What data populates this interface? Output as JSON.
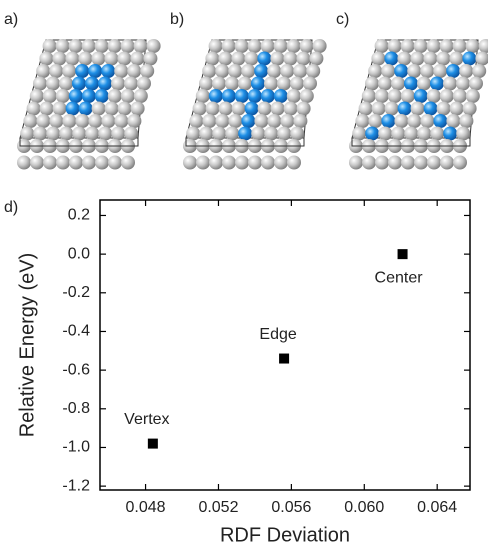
{
  "panel_labels": [
    "a)",
    "b)",
    "c)",
    "d)"
  ],
  "chart_data": {
    "type": "scatter",
    "x_label": "RDF Deviation",
    "y_label": "Relative Energy (eV)",
    "x": [
      0.0484,
      0.0556,
      0.0621
    ],
    "values": [
      -0.98,
      -0.54,
      0.0
    ],
    "point_labels": [
      "Vertex",
      "Edge",
      "Center"
    ],
    "color": "#000000",
    "xlim": [
      0.0455,
      0.0658
    ],
    "ylim": [
      -1.22,
      0.28
    ],
    "xticks": [
      0.048,
      0.052,
      0.056,
      {
        "value": 0.06,
        "label": "0.060"
      },
      0.064
    ],
    "yticks": [
      0.2,
      {
        "value": 0,
        "label": "0.0"
      },
      -0.2,
      -0.4,
      -0.6,
      -0.8,
      {
        "value": -1,
        "label": "-1.0"
      },
      -1.2
    ],
    "grid": false
  }
}
